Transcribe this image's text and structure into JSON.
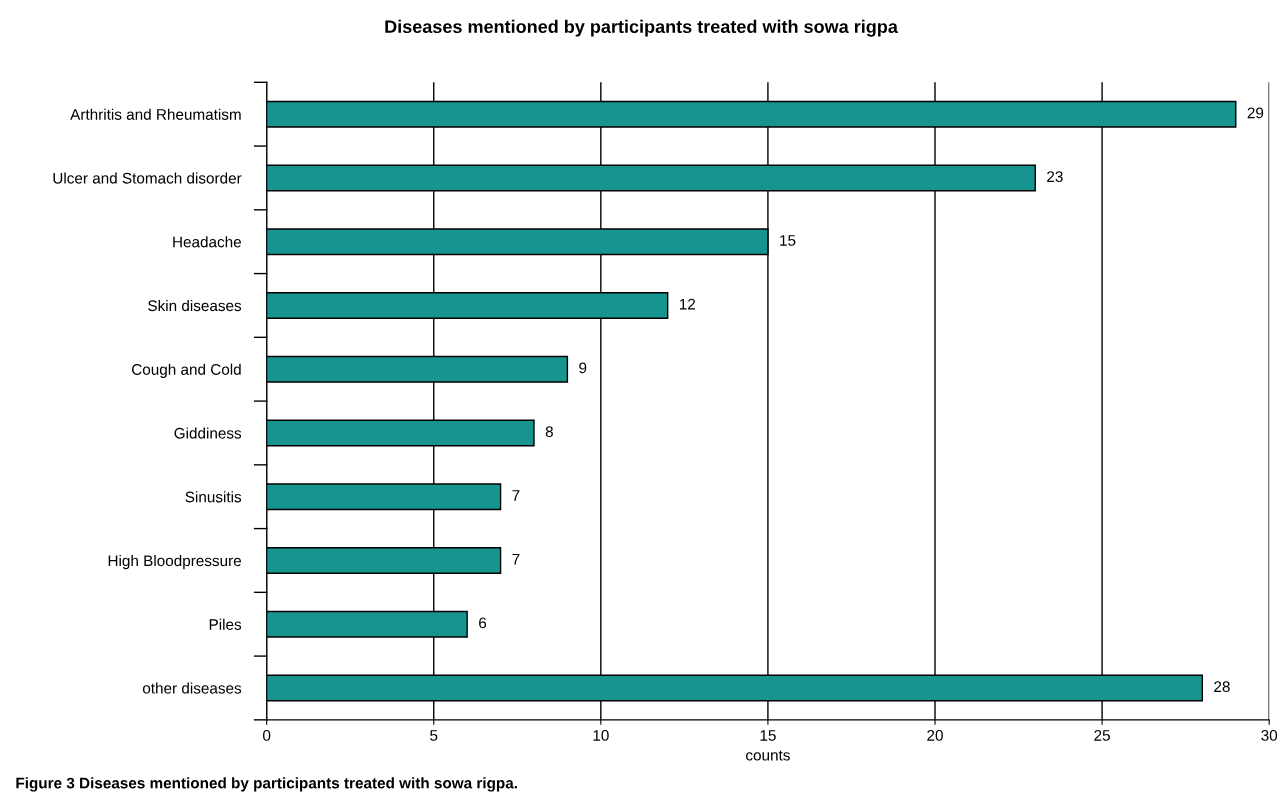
{
  "chart_data": {
    "type": "bar",
    "orientation": "horizontal",
    "title": "Diseases mentioned by participants treated with sowa rigpa",
    "categories": [
      "Arthritis and Rheumatism",
      "Ulcer and Stomach disorder",
      "Headache",
      "Skin diseases",
      "Cough and Cold",
      "Giddiness",
      "Sinusitis",
      "High Bloodpressure",
      "Piles",
      "other diseases"
    ],
    "values": [
      29,
      23,
      15,
      12,
      9,
      8,
      7,
      7,
      6,
      28
    ],
    "color": "#17948f",
    "xlabel": "counts",
    "xlim": [
      0,
      30
    ],
    "xticks": [
      0,
      5,
      10,
      15,
      20,
      25,
      30
    ],
    "grid": "x",
    "data_labels": true,
    "legend": false,
    "annotations": [
      "Figure 3 Diseases mentioned by participants treated with sowa rigpa."
    ]
  }
}
